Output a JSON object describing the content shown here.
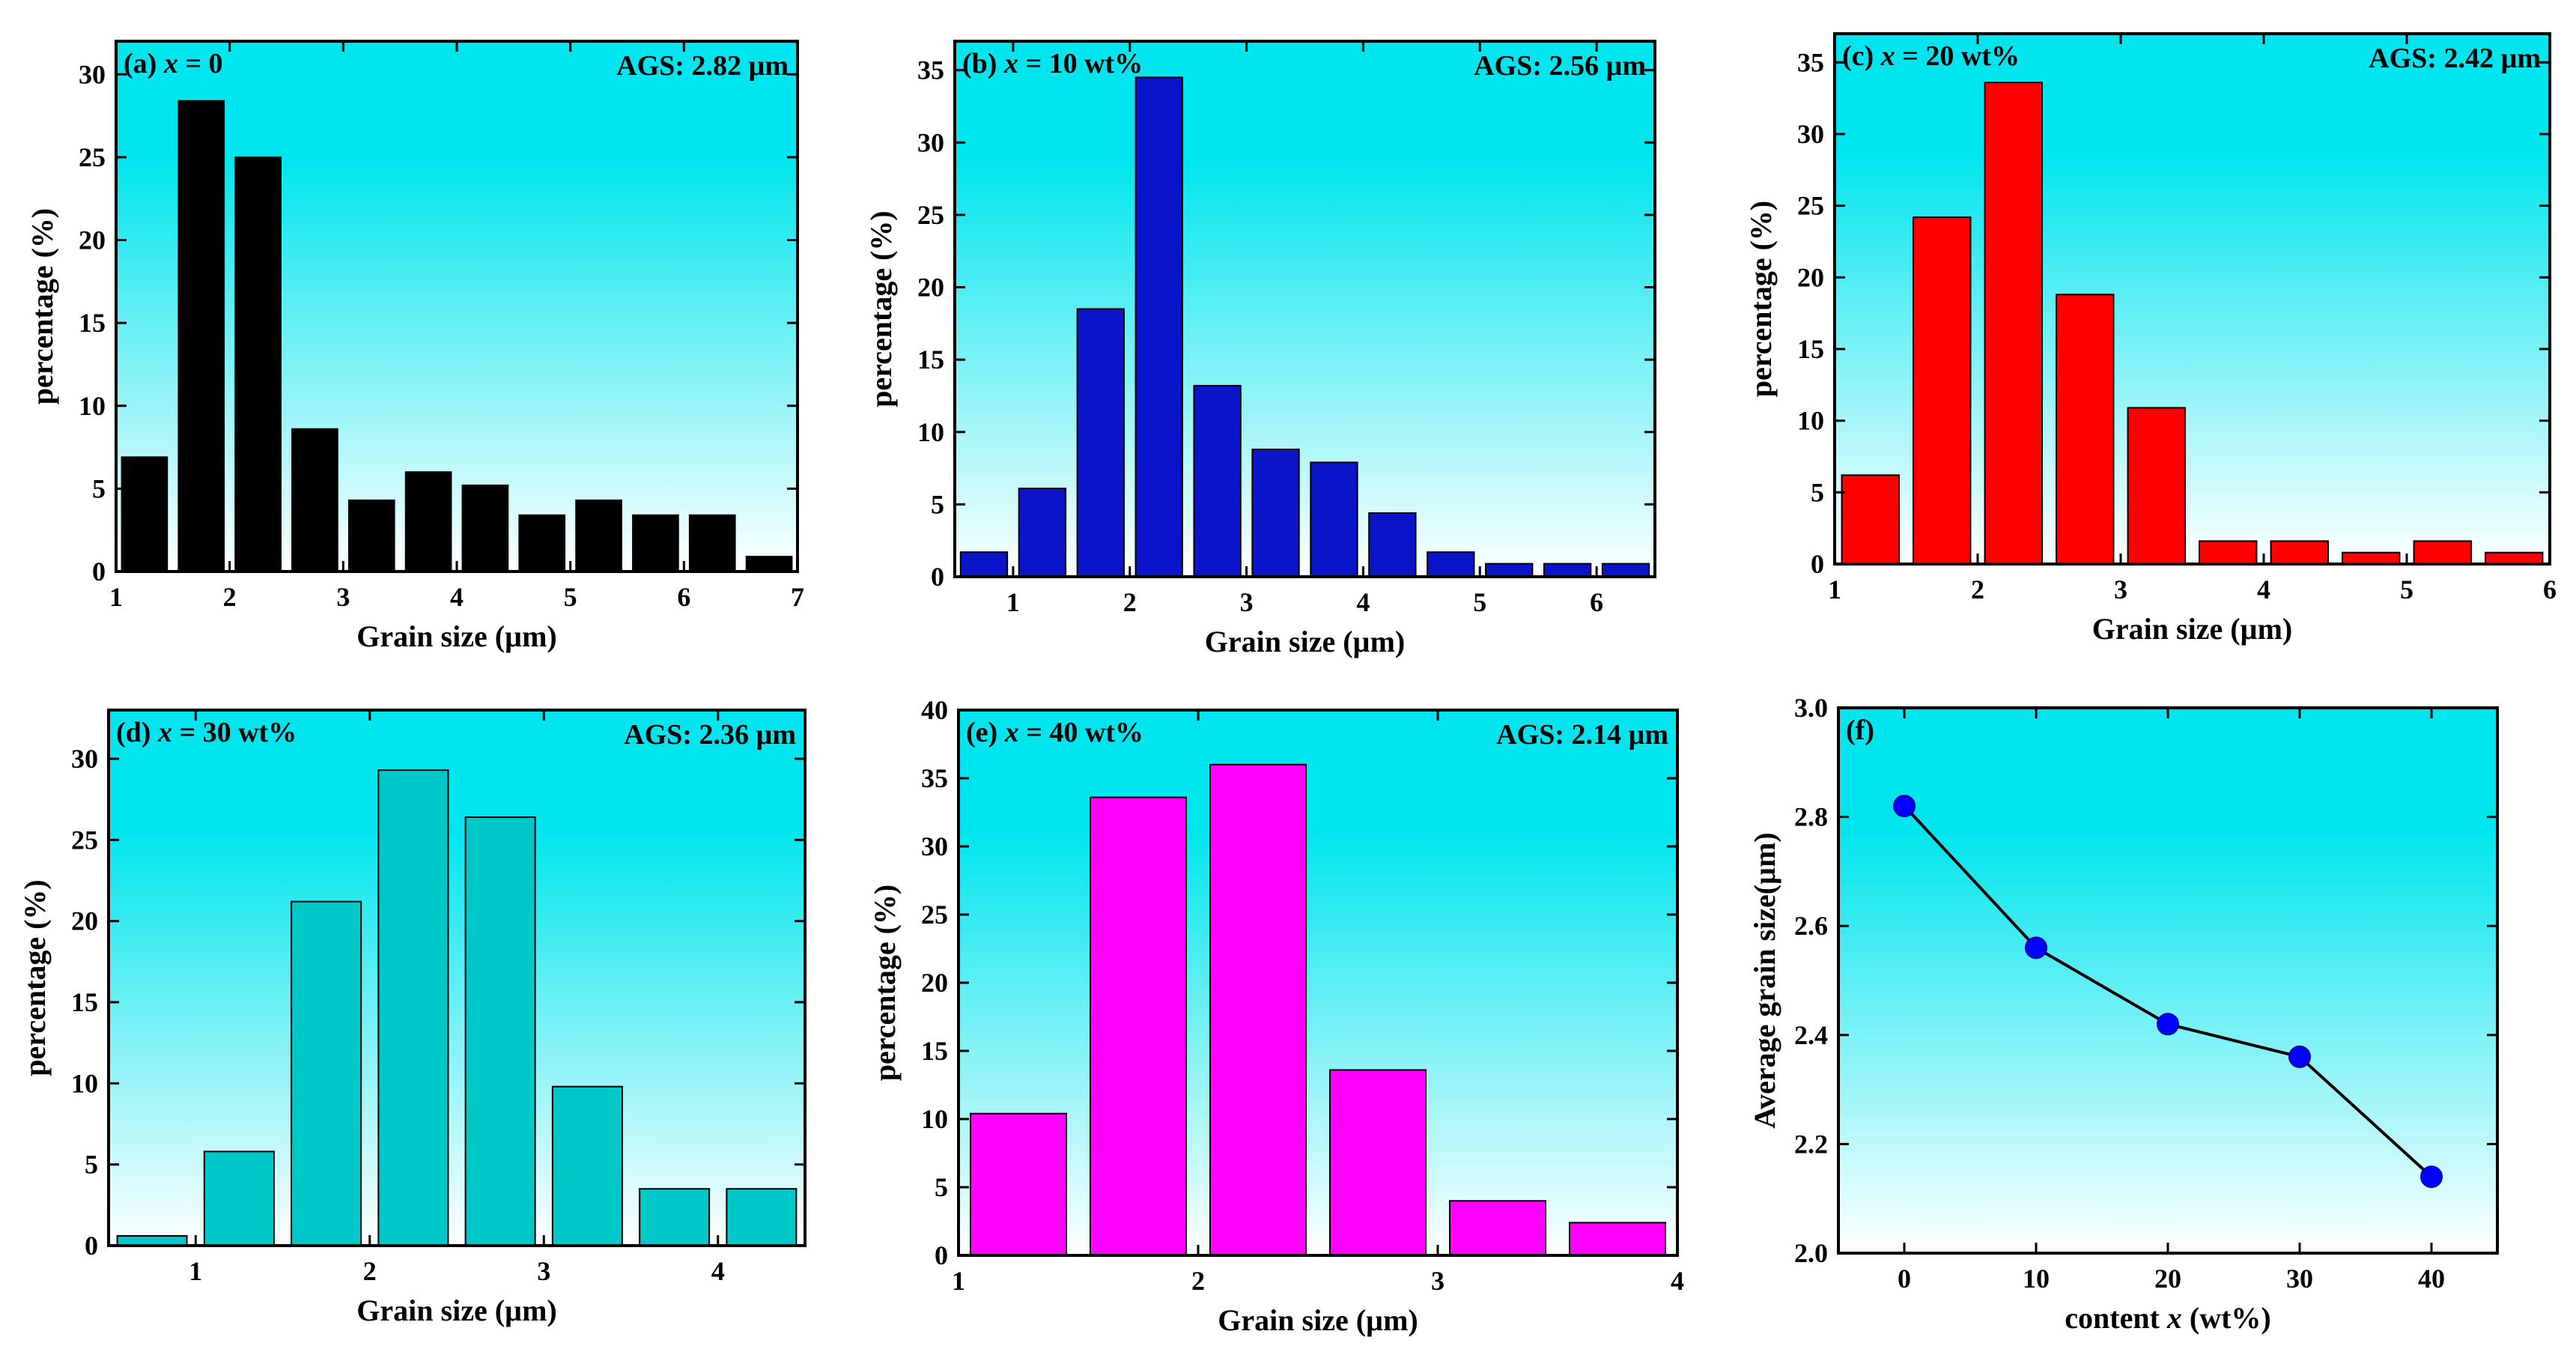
{
  "figure": {
    "colors": {
      "gradient_top": "#00e5ee",
      "gradient_bottom": "#ffffff",
      "axis": "#000000"
    }
  },
  "chart_data": [
    {
      "id": "a",
      "type": "bar",
      "title": {
        "prefix": "(a) ",
        "var": "x",
        "suffix": " = 0"
      },
      "annotation": "AGS: 2.82 µm",
      "xlabel": "Grain size (µm)",
      "ylabel": "percentage (%)",
      "xlim": [
        1,
        7
      ],
      "ylim": [
        0,
        32
      ],
      "xticks": [
        1,
        2,
        3,
        4,
        5,
        6,
        7
      ],
      "yticks": [
        0,
        5,
        10,
        15,
        20,
        25,
        30
      ],
      "bar_width": 0.4,
      "color": "#000000",
      "x": [
        1.25,
        1.75,
        2.25,
        2.75,
        3.25,
        3.75,
        4.25,
        4.75,
        5.25,
        5.75,
        6.25,
        6.75
      ],
      "values": [
        6.9,
        28.4,
        25.0,
        8.6,
        4.3,
        6.0,
        5.2,
        3.4,
        4.3,
        3.4,
        3.4,
        0.9
      ]
    },
    {
      "id": "b",
      "type": "bar",
      "title": {
        "prefix": "(b) ",
        "var": "x",
        "suffix": " = 10 wt%"
      },
      "annotation": "AGS: 2.56 µm",
      "xlabel": "Grain size (µm)",
      "ylabel": "percentage (%)",
      "xlim": [
        0.5,
        6.5
      ],
      "ylim": [
        0,
        37
      ],
      "xticks": [
        1,
        2,
        3,
        4,
        5,
        6
      ],
      "yticks": [
        0,
        5,
        10,
        15,
        20,
        25,
        30,
        35
      ],
      "bar_width": 0.4,
      "color": "#0a14c8",
      "x": [
        0.75,
        1.25,
        1.75,
        2.25,
        2.75,
        3.25,
        3.75,
        4.25,
        4.75,
        5.25,
        5.75,
        6.25
      ],
      "values": [
        1.7,
        6.1,
        18.5,
        34.5,
        13.2,
        8.8,
        7.9,
        4.4,
        1.7,
        0.9,
        0.9,
        0.9
      ]
    },
    {
      "id": "c",
      "type": "bar",
      "title": {
        "prefix": "(c) ",
        "var": "x",
        "suffix": " = 20 wt%"
      },
      "annotation": "AGS: 2.42 µm",
      "xlabel": "Grain size (µm)",
      "ylabel": "percentage (%)",
      "xlim": [
        1,
        6
      ],
      "ylim": [
        0,
        37
      ],
      "xticks": [
        1,
        2,
        3,
        4,
        5,
        6
      ],
      "yticks": [
        0,
        5,
        10,
        15,
        20,
        25,
        30,
        35
      ],
      "bar_width": 0.4,
      "color": "#ff0000",
      "x": [
        1.25,
        1.75,
        2.25,
        2.75,
        3.25,
        3.75,
        4.25,
        4.75,
        5.25,
        5.75
      ],
      "values": [
        6.2,
        24.2,
        33.6,
        18.8,
        10.9,
        1.6,
        1.6,
        0.8,
        1.6,
        0.8
      ]
    },
    {
      "id": "d",
      "type": "bar",
      "title": {
        "prefix": "(d) ",
        "var": "x",
        "suffix": " = 30 wt%"
      },
      "annotation": "AGS: 2.36 µm",
      "xlabel": "Grain size (µm)",
      "ylabel": "percentage (%)",
      "xlim": [
        0.5,
        4.5
      ],
      "ylim": [
        0,
        33
      ],
      "xticks": [
        1,
        2,
        3,
        4
      ],
      "yticks": [
        0,
        5,
        10,
        15,
        20,
        25,
        30
      ],
      "bar_width": 0.4,
      "color": "#00c8c8",
      "x": [
        0.75,
        1.25,
        1.75,
        2.25,
        2.75,
        3.25,
        3.75,
        4.25
      ],
      "values": [
        0.6,
        5.8,
        21.2,
        29.3,
        26.4,
        9.8,
        3.5,
        3.5
      ]
    },
    {
      "id": "e",
      "type": "bar",
      "title": {
        "prefix": "(e) ",
        "var": "x",
        "suffix": " = 40 wt%"
      },
      "annotation": "AGS: 2.14 µm",
      "xlabel": "Grain size (µm)",
      "ylabel": "percentage (%)",
      "xlim": [
        1,
        4
      ],
      "ylim": [
        0,
        40
      ],
      "xticks": [
        1,
        2,
        3,
        4
      ],
      "yticks": [
        0,
        5,
        10,
        15,
        20,
        25,
        30,
        35,
        40
      ],
      "bar_width": 0.4,
      "color": "#ff00ff",
      "x": [
        1.25,
        1.75,
        2.25,
        2.75,
        3.25,
        3.75
      ],
      "values": [
        10.4,
        33.6,
        36.0,
        13.6,
        4.0,
        2.4
      ]
    },
    {
      "id": "f",
      "type": "line",
      "title": {
        "prefix": "(f)",
        "var": "",
        "suffix": ""
      },
      "annotation": "",
      "xlabel": {
        "prefix": "content ",
        "var": "x",
        "suffix": " (wt%)"
      },
      "ylabel": "Average grain size(µm)",
      "xlim": [
        -5,
        45
      ],
      "ylim": [
        2.0,
        3.0
      ],
      "xticks": [
        0,
        10,
        20,
        30,
        40
      ],
      "yticks": [
        2.0,
        2.2,
        2.4,
        2.6,
        2.8,
        3.0
      ],
      "ytick_labels": [
        "2.0",
        "2.2",
        "2.4",
        "2.6",
        "2.8",
        "3.0"
      ],
      "color": "#0000ff",
      "x": [
        0,
        10,
        20,
        30,
        40
      ],
      "values": [
        2.82,
        2.56,
        2.42,
        2.36,
        2.14
      ]
    }
  ]
}
